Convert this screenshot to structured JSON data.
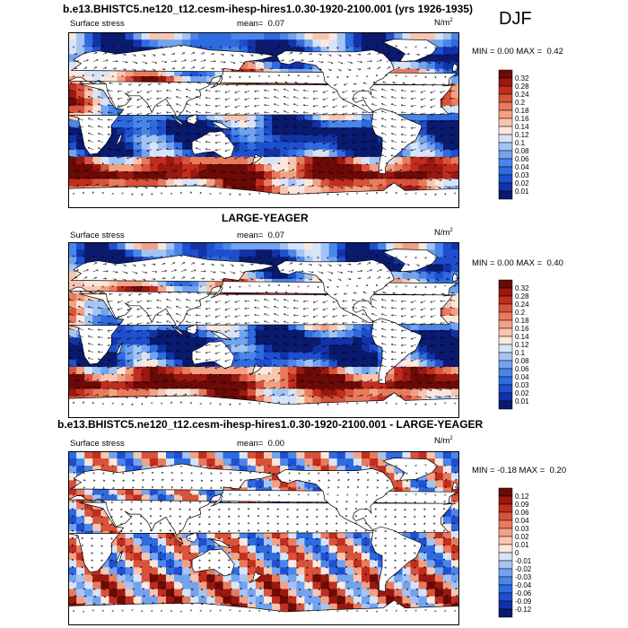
{
  "season": "DJF",
  "chart_data": [
    {
      "type": "heatmap",
      "title": "b.e13.BHISTC5.ne120_t12.cesm-ihesp-hires1.0.30-1920-2100.001 (yrs 1926-1935)",
      "left_label": "Surface stress",
      "mean_label": "mean=",
      "mean_value": "0.07",
      "units_base": "N/m",
      "units_exp": "2",
      "min_label": "MIN =",
      "min_value": "0.00",
      "max_label": "MAX =",
      "max_value": "0.42",
      "colorbar_levels": [
        "0.01",
        "0.02",
        "0.03",
        "0.04",
        "0.06",
        "0.08",
        "0.1",
        "0.12",
        "0.14",
        "0.16",
        "0.18",
        "0.2",
        "0.24",
        "0.28",
        "0.32"
      ],
      "colorbar_colors": [
        "#0a1a6e",
        "#1233a8",
        "#1f4fd0",
        "#2e6ae0",
        "#4a86ea",
        "#72a3f0",
        "#a4c4f5",
        "#d6e4fa",
        "#fbe7dc",
        "#f8c6b0",
        "#f3a184",
        "#e97a5c",
        "#d9523b",
        "#c12d1e",
        "#9a1810",
        "#6b0a06"
      ],
      "field_offset": 0.0
    },
    {
      "type": "heatmap",
      "title": "LARGE-YEAGER",
      "left_label": "Surface stress",
      "mean_label": "mean=",
      "mean_value": "0.07",
      "units_base": "N/m",
      "units_exp": "2",
      "min_label": "MIN =",
      "min_value": "0.00",
      "max_label": "MAX =",
      "max_value": "0.40",
      "colorbar_levels": [
        "0.01",
        "0.02",
        "0.03",
        "0.04",
        "0.06",
        "0.08",
        "0.1",
        "0.12",
        "0.14",
        "0.16",
        "0.18",
        "0.2",
        "0.24",
        "0.28",
        "0.32"
      ],
      "colorbar_colors": [
        "#0a1a6e",
        "#1233a8",
        "#1f4fd0",
        "#2e6ae0",
        "#4a86ea",
        "#72a3f0",
        "#a4c4f5",
        "#d6e4fa",
        "#fbe7dc",
        "#f8c6b0",
        "#f3a184",
        "#e97a5c",
        "#d9523b",
        "#c12d1e",
        "#9a1810",
        "#6b0a06"
      ],
      "field_offset": 0.7
    },
    {
      "type": "heatmap",
      "title": "b.e13.BHISTC5.ne120_t12.cesm-ihesp-hires1.0.30-1920-2100.001 - LARGE-YEAGER",
      "left_label": "Surface stress",
      "mean_label": "mean=",
      "mean_value": "0.00",
      "units_base": "N/m",
      "units_exp": "2",
      "min_label": "MIN =",
      "min_value": "-0.18",
      "max_label": "MAX =",
      "max_value": "0.20",
      "colorbar_levels": [
        "-0.12",
        "-0.09",
        "-0.06",
        "-0.04",
        "-0.03",
        "-0.02",
        "-0.01",
        "0",
        "0.01",
        "0.02",
        "0.03",
        "0.04",
        "0.06",
        "0.09",
        "0.12"
      ],
      "colorbar_colors": [
        "#0a1a6e",
        "#1233a8",
        "#1f4fd0",
        "#2e6ae0",
        "#4a86ea",
        "#72a3f0",
        "#a4c4f5",
        "#d6e4fa",
        "#fbe7dc",
        "#f8c6b0",
        "#f3a184",
        "#e97a5c",
        "#d9523b",
        "#c12d1e",
        "#9a1810",
        "#6b0a06"
      ],
      "field_offset": 2.1
    }
  ]
}
